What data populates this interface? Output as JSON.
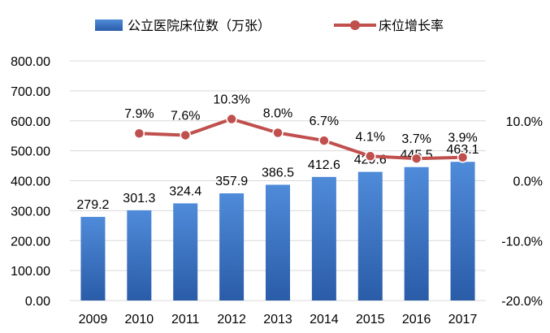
{
  "chart_data": {
    "type": "bar",
    "categories": [
      "2009",
      "2010",
      "2011",
      "2012",
      "2013",
      "2014",
      "2015",
      "2016",
      "2017"
    ],
    "series": [
      {
        "name": "公立医院床位数（万张）",
        "type": "bar",
        "axis": "left",
        "values": [
          279.2,
          301.3,
          324.4,
          357.9,
          386.5,
          412.6,
          429.6,
          445.5,
          463.1
        ],
        "labels": [
          "279.2",
          "301.3",
          "324.4",
          "357.9",
          "386.5",
          "412.6",
          "429.6",
          "445.5",
          "463.1"
        ],
        "color": "#3A75C4"
      },
      {
        "name": "床位增长率",
        "type": "line",
        "axis": "right",
        "values": [
          null,
          7.9,
          7.6,
          10.3,
          8.0,
          6.7,
          4.1,
          3.7,
          3.9
        ],
        "labels": [
          "",
          "7.9%",
          "7.6%",
          "10.3%",
          "8.0%",
          "6.7%",
          "4.1%",
          "3.7%",
          "3.9%"
        ],
        "color": "#C0504D"
      }
    ],
    "y_left": {
      "min": 0,
      "max": 800,
      "ticks": [
        0,
        100,
        200,
        300,
        400,
        500,
        600,
        700,
        800
      ],
      "tick_labels": [
        "0.00",
        "100.00",
        "200.00",
        "300.00",
        "400.00",
        "500.00",
        "600.00",
        "700.00",
        "800.00"
      ]
    },
    "y_right": {
      "min": -20,
      "max": 20,
      "ticks": [
        -20,
        -10,
        0,
        10
      ],
      "tick_labels": [
        "-20.0%",
        "-10.0%",
        "0.0%",
        "10.0%"
      ]
    },
    "gridlines": true,
    "legend_position": "top"
  }
}
